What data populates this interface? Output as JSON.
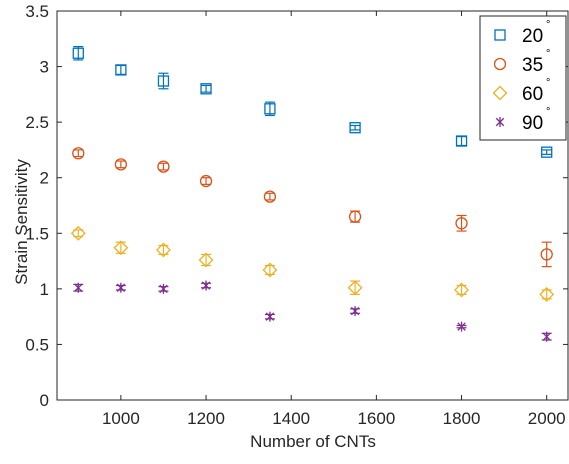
{
  "chart_data": {
    "type": "scatter",
    "title": "",
    "xlabel": "Number of CNTs",
    "ylabel": "Strain Sensitivity",
    "xlim": [
      850,
      2050
    ],
    "ylim": [
      0,
      3.5
    ],
    "xticks": [
      1000,
      1200,
      1400,
      1600,
      1800,
      2000
    ],
    "xtick_labels": [
      "1000",
      "1200",
      "1400",
      "1600",
      "1800",
      "2000"
    ],
    "yticks": [
      0,
      0.5,
      1,
      1.5,
      2,
      2.5,
      3,
      3.5
    ],
    "ytick_labels": [
      "0",
      "0.5",
      "1",
      "1.5",
      "2",
      "2.5",
      "3",
      "3.5"
    ],
    "grid": false,
    "legend_position": "top-right",
    "x": [
      900,
      1000,
      1100,
      1200,
      1350,
      1550,
      1800,
      2000
    ],
    "series": [
      {
        "name": "20",
        "degree_symbol": "°",
        "marker": "square",
        "color": "#0072BD",
        "values": [
          3.12,
          2.97,
          2.87,
          2.8,
          2.62,
          2.45,
          2.33,
          2.23
        ],
        "errors": [
          0.06,
          0.04,
          0.07,
          0.03,
          0.06,
          0.02,
          0.04,
          0.02
        ]
      },
      {
        "name": "35",
        "degree_symbol": "°",
        "marker": "circle",
        "color": "#D95319",
        "values": [
          2.22,
          2.12,
          2.1,
          1.97,
          1.83,
          1.65,
          1.59,
          1.31
        ],
        "errors": [
          0.03,
          0.03,
          0.03,
          0.03,
          0.03,
          0.05,
          0.07,
          0.11
        ]
      },
      {
        "name": "60",
        "degree_symbol": "°",
        "marker": "diamond",
        "color": "#EDB120",
        "values": [
          1.5,
          1.37,
          1.35,
          1.26,
          1.17,
          1.01,
          0.99,
          0.95
        ],
        "errors": [
          0.03,
          0.05,
          0.04,
          0.05,
          0.04,
          0.06,
          0.04,
          0.04
        ]
      },
      {
        "name": "90",
        "degree_symbol": "°",
        "marker": "asterisk",
        "color": "#7E2F8E",
        "values": [
          1.01,
          1.01,
          1.0,
          1.03,
          0.75,
          0.8,
          0.66,
          0.57
        ],
        "errors": [
          0.03,
          0.02,
          0.02,
          0.02,
          0.02,
          0.02,
          0.01,
          0.03
        ]
      }
    ]
  }
}
